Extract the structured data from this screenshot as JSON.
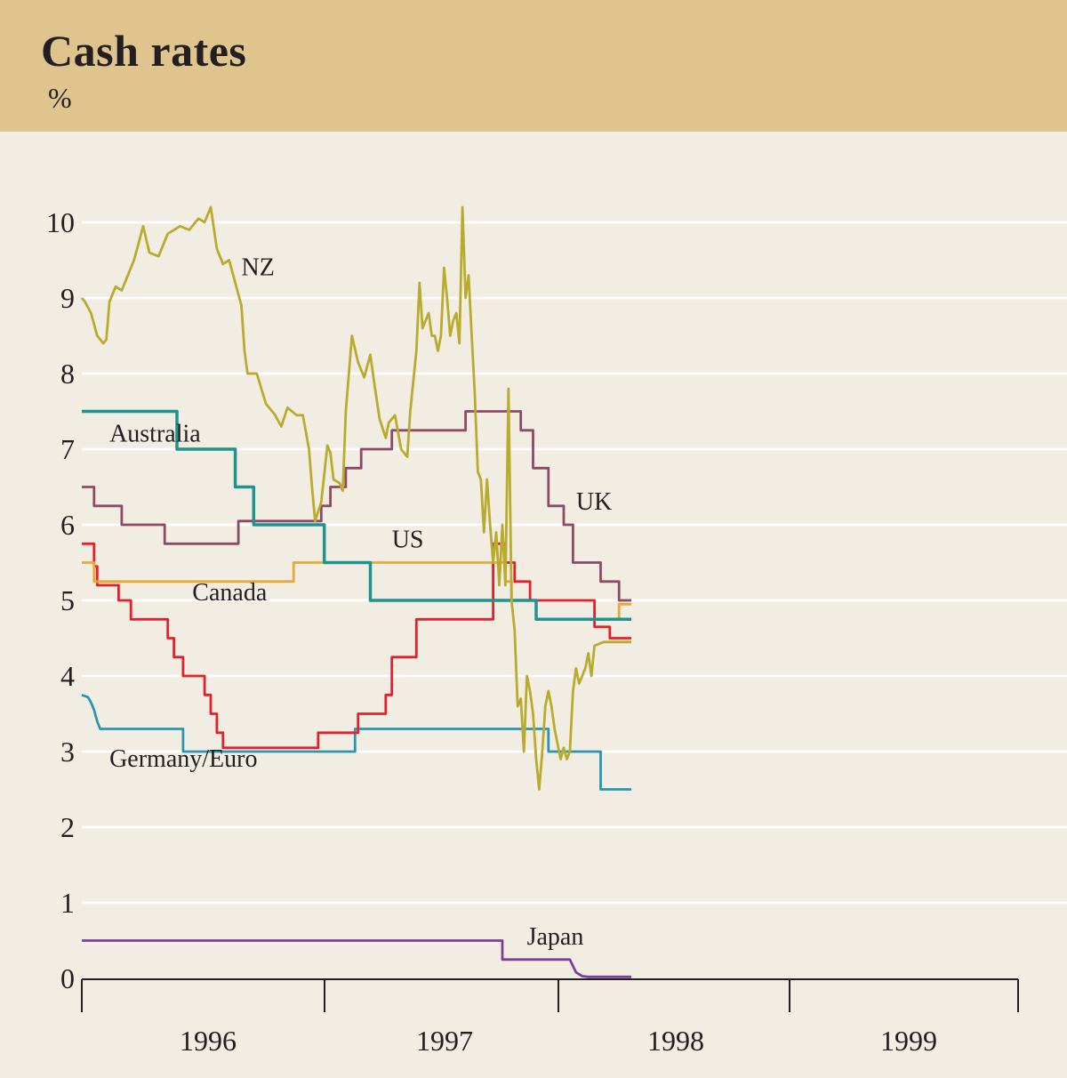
{
  "header": {
    "title": "Cash rates",
    "unit": "%"
  },
  "chart_data": {
    "type": "line",
    "title": "Cash rates",
    "ylabel": "%",
    "xlabel": "",
    "ylim": [
      0,
      10.4
    ],
    "xlim": [
      1995.95,
      1999.0
    ],
    "yticks": [
      0,
      1,
      2,
      3,
      4,
      5,
      6,
      7,
      8,
      9,
      10
    ],
    "ytick_labels": [
      "0",
      "1",
      "2",
      "3",
      "4",
      "5",
      "6",
      "7",
      "8",
      "9",
      "10"
    ],
    "xticks": [
      1995.95,
      1996.0,
      1996.5,
      1997.0,
      1997.5,
      1998.0,
      1998.5,
      1999.0
    ],
    "xcategories": [
      {
        "label": "1996",
        "pos": 1996.25
      },
      {
        "label": "1997",
        "pos": 1996.75
      },
      {
        "label": "1998",
        "pos": 1997.25
      },
      {
        "label": "1999",
        "pos": 1997.75
      }
    ],
    "grid": "horizontal",
    "series": [
      {
        "name": "Japan",
        "label": "Japan",
        "color": "#7b3f98",
        "step": true,
        "label_pos": [
          1997.4,
          0.45
        ],
        "points": [
          [
            1995.95,
            0.5
          ],
          [
            1997.32,
            0.5
          ],
          [
            1997.32,
            0.25
          ],
          [
            1997.54,
            0.25
          ],
          [
            1997.56,
            0.08
          ],
          [
            1997.58,
            0.03
          ],
          [
            1997.6,
            0.02
          ],
          [
            1997.64,
            0.02
          ],
          [
            1997.74,
            0.02
          ]
        ]
      },
      {
        "name": "Germany/Euro",
        "label": "Germany/Euro",
        "color": "#2a96b4",
        "step": true,
        "label_pos": [
          1996.04,
          2.8
        ],
        "points": [
          [
            1995.95,
            3.75
          ],
          [
            1995.97,
            3.72
          ],
          [
            1995.98,
            3.65
          ],
          [
            1995.99,
            3.55
          ],
          [
            1996.0,
            3.4
          ],
          [
            1996.01,
            3.3
          ],
          [
            1996.28,
            3.3
          ],
          [
            1996.28,
            3.0
          ],
          [
            1996.84,
            3.0
          ],
          [
            1996.84,
            3.3
          ],
          [
            1997.47,
            3.3
          ],
          [
            1997.47,
            3.0
          ],
          [
            1997.64,
            3.0
          ],
          [
            1997.64,
            2.5
          ],
          [
            1997.74,
            2.5
          ]
        ]
      },
      {
        "name": "Canada",
        "label": "Canada",
        "color": "#e2212b",
        "step": true,
        "label_pos": [
          1996.31,
          5.0
        ],
        "points": [
          [
            1995.95,
            5.75
          ],
          [
            1995.99,
            5.75
          ],
          [
            1995.99,
            5.45
          ],
          [
            1996.0,
            5.45
          ],
          [
            1996.0,
            5.2
          ],
          [
            1996.07,
            5.2
          ],
          [
            1996.07,
            5.0
          ],
          [
            1996.11,
            5.0
          ],
          [
            1996.11,
            4.75
          ],
          [
            1996.23,
            4.75
          ],
          [
            1996.23,
            4.5
          ],
          [
            1996.25,
            4.5
          ],
          [
            1996.25,
            4.25
          ],
          [
            1996.28,
            4.25
          ],
          [
            1996.28,
            4.0
          ],
          [
            1996.35,
            4.0
          ],
          [
            1996.35,
            3.75
          ],
          [
            1996.37,
            3.75
          ],
          [
            1996.37,
            3.5
          ],
          [
            1996.39,
            3.5
          ],
          [
            1996.39,
            3.25
          ],
          [
            1996.41,
            3.25
          ],
          [
            1996.41,
            3.05
          ],
          [
            1996.72,
            3.05
          ],
          [
            1996.72,
            3.25
          ],
          [
            1996.85,
            3.25
          ],
          [
            1996.85,
            3.5
          ],
          [
            1996.94,
            3.5
          ],
          [
            1996.94,
            3.75
          ],
          [
            1996.96,
            3.75
          ],
          [
            1996.96,
            4.25
          ],
          [
            1997.04,
            4.25
          ],
          [
            1997.04,
            4.75
          ],
          [
            1997.29,
            4.75
          ],
          [
            1997.29,
            5.75
          ],
          [
            1997.33,
            5.75
          ],
          [
            1997.33,
            5.5
          ],
          [
            1997.36,
            5.5
          ],
          [
            1997.36,
            5.25
          ],
          [
            1997.41,
            5.25
          ],
          [
            1997.41,
            5.0
          ],
          [
            1997.62,
            5.0
          ],
          [
            1997.62,
            4.65
          ],
          [
            1997.67,
            4.65
          ],
          [
            1997.67,
            4.5
          ],
          [
            1997.74,
            4.5
          ]
        ]
      },
      {
        "name": "US",
        "label": "US",
        "color": "#e7a935",
        "step": true,
        "label_pos": [
          1996.96,
          5.7
        ],
        "points": [
          [
            1995.95,
            5.5
          ],
          [
            1995.99,
            5.5
          ],
          [
            1995.99,
            5.25
          ],
          [
            1996.64,
            5.25
          ],
          [
            1996.64,
            5.5
          ],
          [
            1997.33,
            5.5
          ],
          [
            1997.33,
            5.25
          ],
          [
            1997.35,
            5.25
          ],
          [
            1997.35,
            5.0
          ],
          [
            1997.43,
            5.0
          ],
          [
            1997.43,
            4.75
          ],
          [
            1997.7,
            4.75
          ],
          [
            1997.7,
            4.95
          ],
          [
            1997.74,
            4.95
          ]
        ]
      },
      {
        "name": "UK",
        "label": "UK",
        "color": "#8d4a64",
        "step": true,
        "label_pos": [
          1997.56,
          6.2
        ],
        "points": [
          [
            1995.95,
            6.5
          ],
          [
            1995.99,
            6.5
          ],
          [
            1995.99,
            6.25
          ],
          [
            1996.08,
            6.25
          ],
          [
            1996.08,
            6.0
          ],
          [
            1996.22,
            6.0
          ],
          [
            1996.22,
            5.75
          ],
          [
            1996.46,
            5.75
          ],
          [
            1996.46,
            6.05
          ],
          [
            1996.73,
            6.05
          ],
          [
            1996.73,
            6.25
          ],
          [
            1996.76,
            6.25
          ],
          [
            1996.76,
            6.5
          ],
          [
            1996.81,
            6.5
          ],
          [
            1996.81,
            6.75
          ],
          [
            1996.86,
            6.75
          ],
          [
            1996.86,
            7.0
          ],
          [
            1996.96,
            7.0
          ],
          [
            1996.96,
            7.25
          ],
          [
            1997.2,
            7.25
          ],
          [
            1997.2,
            7.5
          ],
          [
            1997.38,
            7.5
          ],
          [
            1997.38,
            7.25
          ],
          [
            1997.42,
            7.25
          ],
          [
            1997.42,
            6.75
          ],
          [
            1997.47,
            6.75
          ],
          [
            1997.47,
            6.25
          ],
          [
            1997.52,
            6.25
          ],
          [
            1997.52,
            6.0
          ],
          [
            1997.55,
            6.0
          ],
          [
            1997.55,
            5.5
          ],
          [
            1997.64,
            5.5
          ],
          [
            1997.64,
            5.25
          ],
          [
            1997.7,
            5.25
          ],
          [
            1997.7,
            5.0
          ],
          [
            1997.74,
            5.0
          ]
        ]
      },
      {
        "name": "Australia",
        "label": "Australia",
        "color": "#1e9390",
        "step": true,
        "label_pos": [
          1996.04,
          7.1
        ],
        "points": [
          [
            1995.95,
            7.5
          ],
          [
            1996.26,
            7.5
          ],
          [
            1996.26,
            7.0
          ],
          [
            1996.45,
            7.0
          ],
          [
            1996.45,
            6.5
          ],
          [
            1996.51,
            6.5
          ],
          [
            1996.51,
            6.0
          ],
          [
            1996.74,
            6.0
          ],
          [
            1996.74,
            5.5
          ],
          [
            1996.89,
            5.5
          ],
          [
            1996.89,
            5.0
          ],
          [
            1997.43,
            5.0
          ],
          [
            1997.43,
            4.75
          ],
          [
            1997.74,
            4.75
          ]
        ]
      },
      {
        "name": "NZ",
        "label": "NZ",
        "color": "#b8ab2e",
        "step": false,
        "label_pos": [
          1996.47,
          9.3
        ],
        "points": [
          [
            1995.95,
            9.0
          ],
          [
            1995.96,
            8.95
          ],
          [
            1995.98,
            8.8
          ],
          [
            1996.0,
            8.5
          ],
          [
            1996.02,
            8.4
          ],
          [
            1996.03,
            8.45
          ],
          [
            1996.04,
            8.95
          ],
          [
            1996.06,
            9.15
          ],
          [
            1996.08,
            9.1
          ],
          [
            1996.1,
            9.3
          ],
          [
            1996.12,
            9.5
          ],
          [
            1996.14,
            9.8
          ],
          [
            1996.15,
            9.95
          ],
          [
            1996.17,
            9.6
          ],
          [
            1996.2,
            9.55
          ],
          [
            1996.23,
            9.85
          ],
          [
            1996.27,
            9.95
          ],
          [
            1996.3,
            9.9
          ],
          [
            1996.33,
            10.05
          ],
          [
            1996.35,
            10.0
          ],
          [
            1996.37,
            10.2
          ],
          [
            1996.39,
            9.65
          ],
          [
            1996.41,
            9.45
          ],
          [
            1996.43,
            9.5
          ],
          [
            1996.45,
            9.2
          ],
          [
            1996.47,
            8.9
          ],
          [
            1996.48,
            8.3
          ],
          [
            1996.49,
            8.0
          ],
          [
            1996.52,
            8.0
          ],
          [
            1996.55,
            7.6
          ],
          [
            1996.58,
            7.45
          ],
          [
            1996.6,
            7.3
          ],
          [
            1996.62,
            7.55
          ],
          [
            1996.65,
            7.45
          ],
          [
            1996.67,
            7.45
          ],
          [
            1996.69,
            7.0
          ],
          [
            1996.7,
            6.5
          ],
          [
            1996.71,
            6.05
          ],
          [
            1996.73,
            6.3
          ],
          [
            1996.75,
            7.05
          ],
          [
            1996.76,
            6.95
          ],
          [
            1996.77,
            6.6
          ],
          [
            1996.79,
            6.55
          ],
          [
            1996.8,
            6.45
          ],
          [
            1996.81,
            7.5
          ],
          [
            1996.83,
            8.5
          ],
          [
            1996.85,
            8.15
          ],
          [
            1996.87,
            7.95
          ],
          [
            1996.89,
            8.25
          ],
          [
            1996.9,
            7.95
          ],
          [
            1996.92,
            7.4
          ],
          [
            1996.94,
            7.15
          ],
          [
            1996.95,
            7.35
          ],
          [
            1996.97,
            7.45
          ],
          [
            1996.99,
            7.0
          ],
          [
            1997.01,
            6.9
          ],
          [
            1997.02,
            7.5
          ],
          [
            1997.04,
            8.3
          ],
          [
            1997.05,
            9.2
          ],
          [
            1997.06,
            8.6
          ],
          [
            1997.08,
            8.8
          ],
          [
            1997.09,
            8.5
          ],
          [
            1997.1,
            8.5
          ],
          [
            1997.11,
            8.3
          ],
          [
            1997.12,
            8.5
          ],
          [
            1997.13,
            9.4
          ],
          [
            1997.14,
            9.0
          ],
          [
            1997.15,
            8.5
          ],
          [
            1997.16,
            8.7
          ],
          [
            1997.17,
            8.8
          ],
          [
            1997.18,
            8.4
          ],
          [
            1997.19,
            10.2
          ],
          [
            1997.2,
            9.0
          ],
          [
            1997.21,
            9.3
          ],
          [
            1997.22,
            8.5
          ],
          [
            1997.23,
            7.75
          ],
          [
            1997.24,
            6.7
          ],
          [
            1997.25,
            6.6
          ],
          [
            1997.26,
            5.9
          ],
          [
            1997.27,
            6.6
          ],
          [
            1997.28,
            6.0
          ],
          [
            1997.29,
            5.5
          ],
          [
            1997.3,
            5.9
          ],
          [
            1997.31,
            5.2
          ],
          [
            1997.32,
            6.0
          ],
          [
            1997.33,
            5.2
          ],
          [
            1997.34,
            7.8
          ],
          [
            1997.35,
            5.0
          ],
          [
            1997.36,
            4.6
          ],
          [
            1997.37,
            3.6
          ],
          [
            1997.38,
            3.7
          ],
          [
            1997.39,
            3.0
          ],
          [
            1997.4,
            4.0
          ],
          [
            1997.41,
            3.8
          ],
          [
            1997.42,
            3.5
          ],
          [
            1997.43,
            2.9
          ],
          [
            1997.44,
            2.5
          ],
          [
            1997.45,
            3.0
          ],
          [
            1997.46,
            3.6
          ],
          [
            1997.47,
            3.8
          ],
          [
            1997.48,
            3.6
          ],
          [
            1997.49,
            3.3
          ],
          [
            1997.5,
            3.1
          ],
          [
            1997.51,
            2.9
          ],
          [
            1997.52,
            3.05
          ],
          [
            1997.53,
            2.9
          ],
          [
            1997.54,
            3.0
          ],
          [
            1997.55,
            3.8
          ],
          [
            1997.56,
            4.1
          ],
          [
            1997.57,
            3.9
          ],
          [
            1997.58,
            4.0
          ],
          [
            1997.59,
            4.1
          ],
          [
            1997.6,
            4.3
          ],
          [
            1997.61,
            4.0
          ],
          [
            1997.62,
            4.4
          ],
          [
            1997.65,
            4.45
          ],
          [
            1997.67,
            4.45
          ],
          [
            1997.69,
            4.45
          ],
          [
            1997.72,
            4.45
          ],
          [
            1997.74,
            4.45
          ]
        ]
      }
    ]
  }
}
